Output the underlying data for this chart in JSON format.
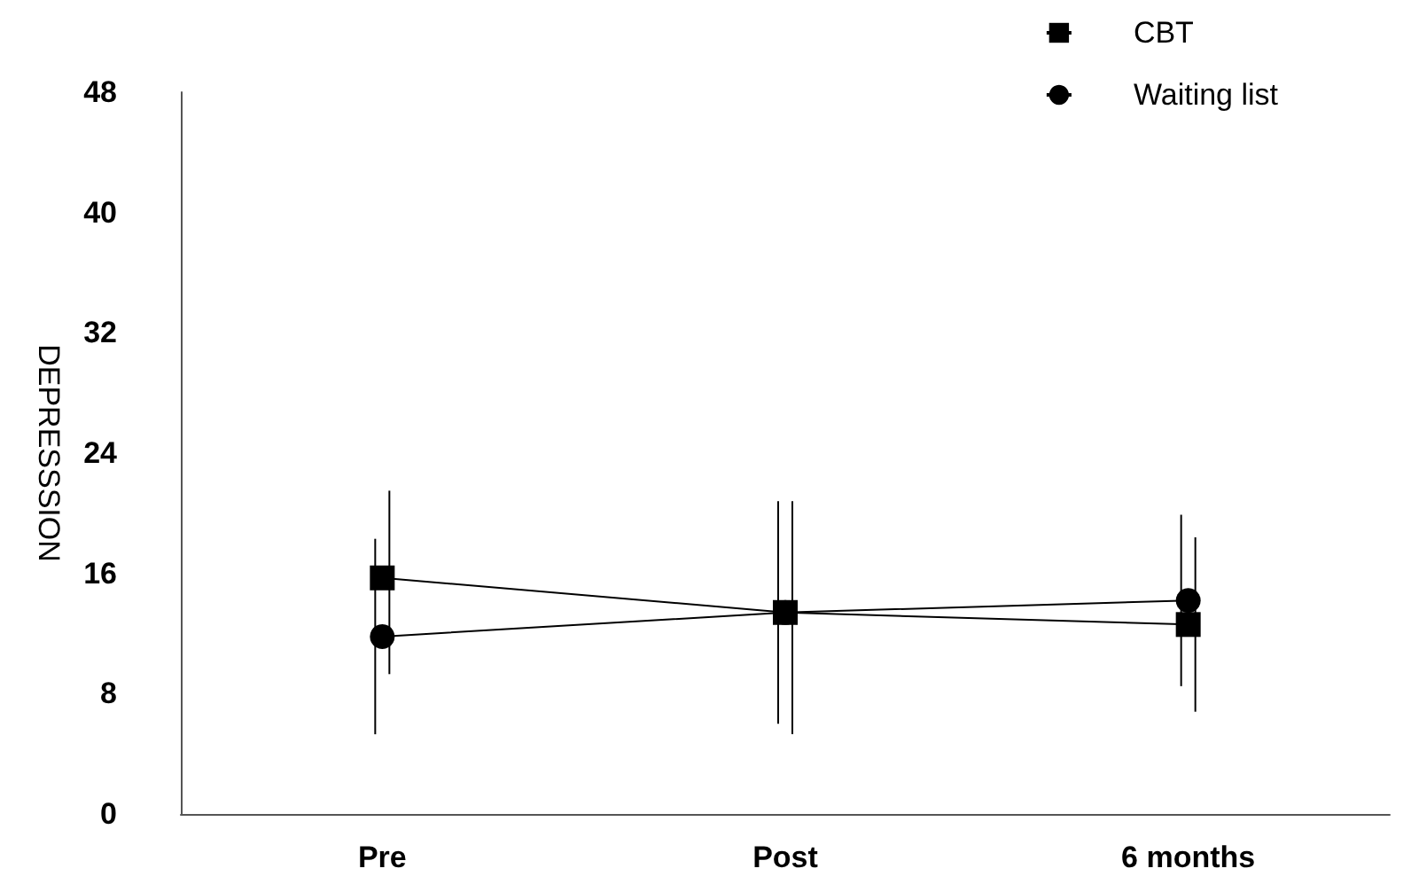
{
  "chart_data": {
    "type": "line",
    "ylabel": "DEPRESSSION",
    "categories": [
      "Pre",
      "Post",
      "6 months"
    ],
    "series": [
      {
        "name": "CBT",
        "color": "#000000",
        "marker": "square",
        "values": [
          15.7,
          13.4,
          12.6
        ],
        "errors": [
          [
            9.3,
            21.5
          ],
          [
            5.3,
            20.8
          ],
          [
            6.8,
            18.4
          ]
        ]
      },
      {
        "name": "Waiting list",
        "color": "#000000",
        "marker": "circle",
        "values": [
          11.8,
          13.4,
          14.2
        ],
        "errors": [
          [
            5.3,
            18.3
          ],
          [
            6.0,
            20.8
          ],
          [
            8.5,
            19.9
          ]
        ]
      }
    ],
    "ylim": [
      0,
      48
    ],
    "yticks": [
      0,
      8,
      16,
      24,
      32,
      40,
      48
    ],
    "grid": false,
    "legend": "top right",
    "line_style": "solid"
  }
}
